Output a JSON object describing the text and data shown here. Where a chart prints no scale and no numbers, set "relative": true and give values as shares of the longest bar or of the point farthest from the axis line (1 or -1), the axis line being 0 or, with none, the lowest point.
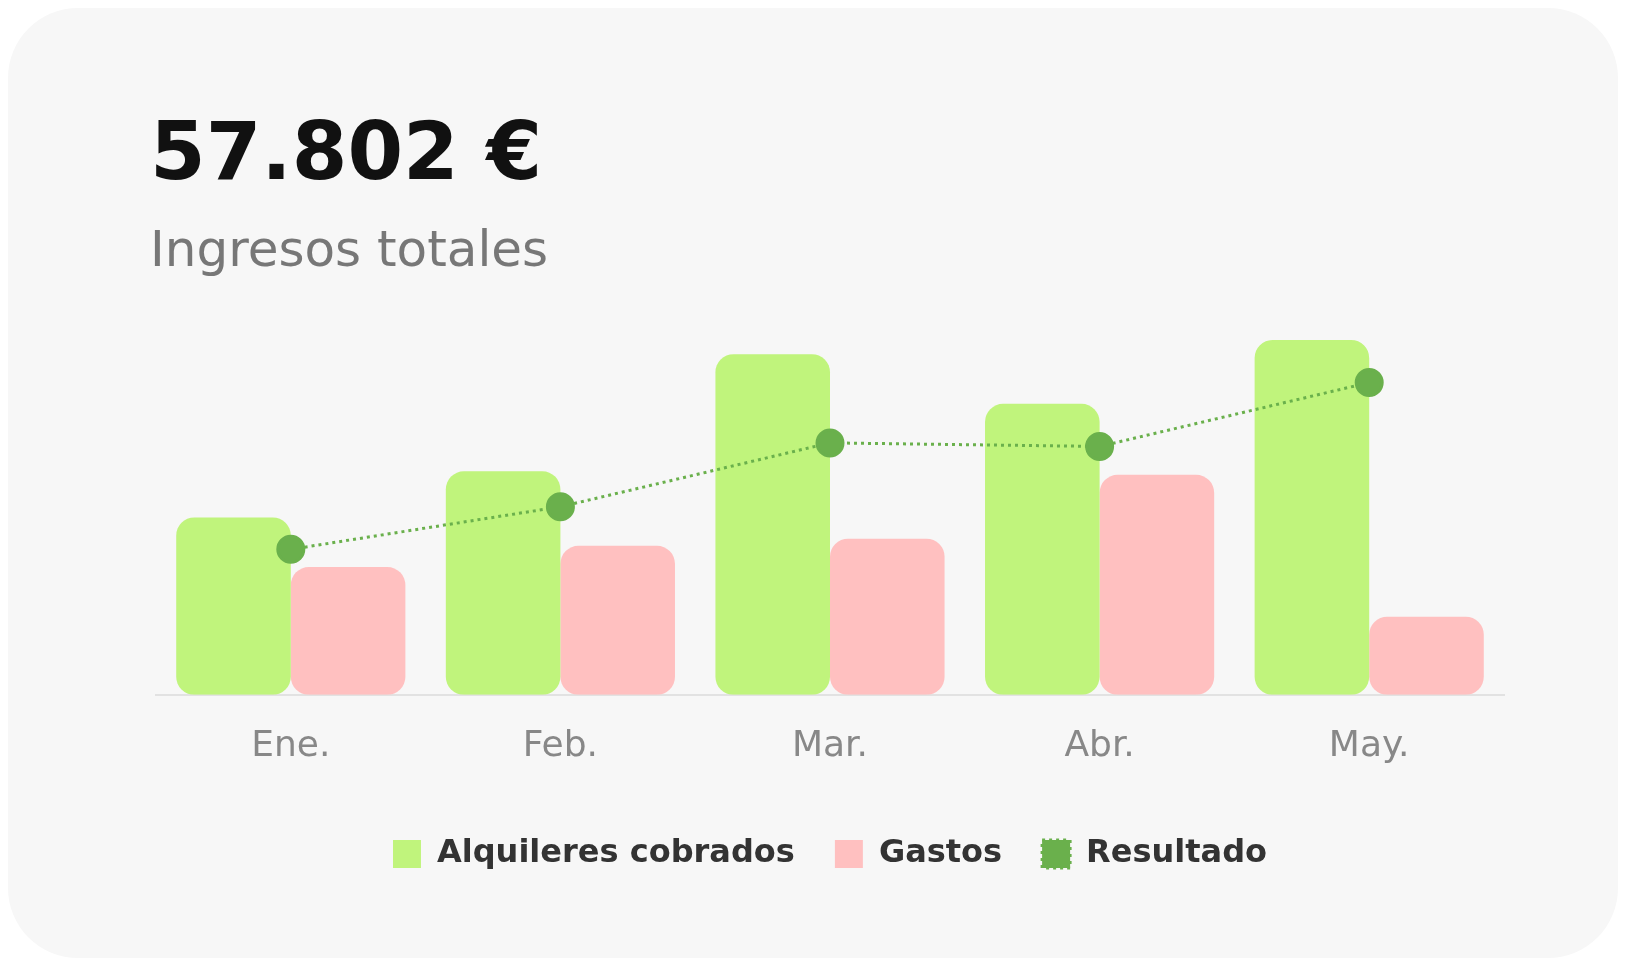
{
  "chart_data": {
    "type": "bar",
    "title": "57.802 €",
    "subtitle": "Ingresos totales",
    "relative": true,
    "categories": [
      "Ene.",
      "Feb.",
      "Mar.",
      "Abr.",
      "May."
    ],
    "series": [
      {
        "name": "Alquileres cobrados",
        "color": "#c0f47c",
        "values": [
          0.5,
          0.63,
          0.96,
          0.82,
          1.0
        ]
      },
      {
        "name": "Gastos",
        "color": "#ffc0c0",
        "values": [
          0.36,
          0.42,
          0.44,
          0.62,
          0.22
        ]
      },
      {
        "name": "Resultado",
        "type": "line",
        "color": "#6ab04c",
        "values": [
          0.41,
          0.53,
          0.71,
          0.7,
          0.88
        ]
      }
    ],
    "marker": "circle",
    "line_style": "dotted",
    "legend": "bottom",
    "grid": false
  }
}
